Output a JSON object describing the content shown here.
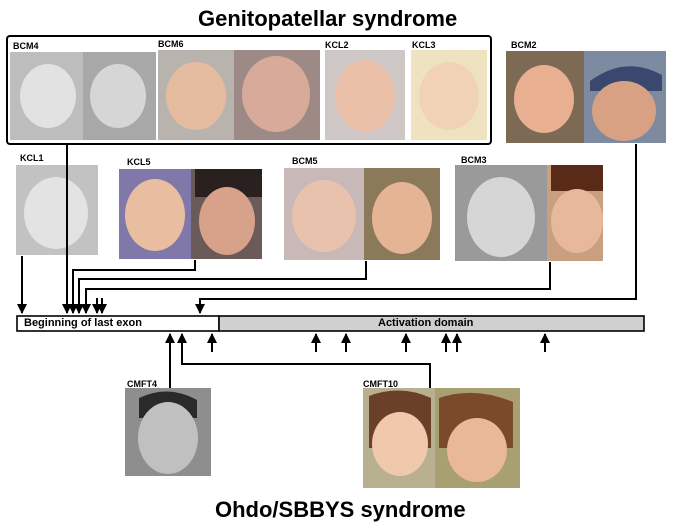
{
  "titles": {
    "top": "Genitopatellar syndrome",
    "bottom": "Ohdo/SBBYS syndrome"
  },
  "gene_bar": {
    "segment1": "Beginning of last exon",
    "segment2": "Activation domain"
  },
  "patients": {
    "BCM4": "BCM4",
    "BCM6": "BCM6",
    "KCL2": "KCL2",
    "KCL3": "KCL3",
    "BCM2": "BCM2",
    "KCL1": "KCL1",
    "KCL5": "KCL5",
    "BCM5": "BCM5",
    "BCM3": "BCM3",
    "CMFT4": "CMFT4",
    "CMFT10": "CMFT10"
  },
  "colors": {
    "activation_domain": "#d0d0d0",
    "first_segment": "#ffffff",
    "lines": "#000000"
  }
}
